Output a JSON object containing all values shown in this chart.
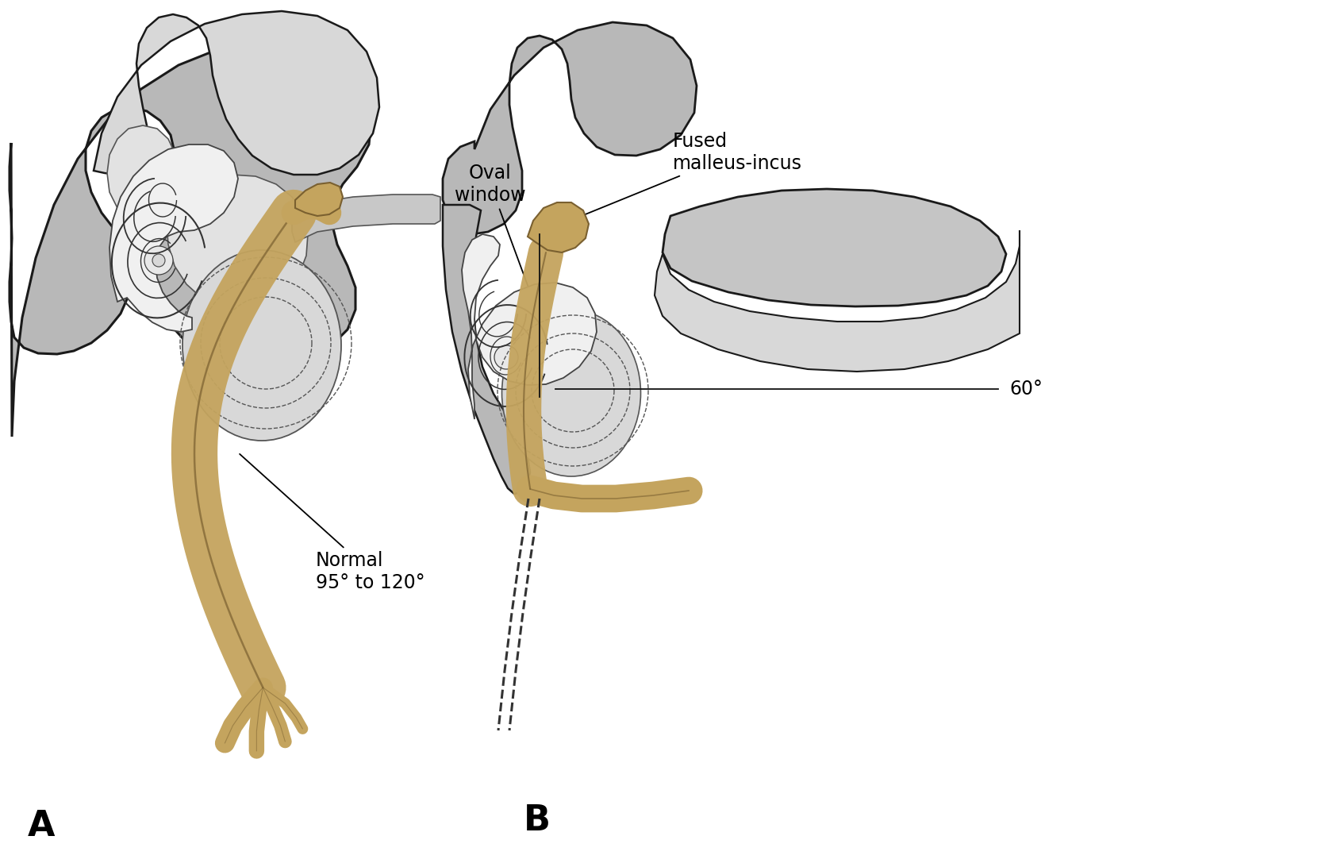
{
  "background_color": "#ffffff",
  "figure_width": 16.81,
  "figure_height": 10.87,
  "dpi": 100,
  "label_A": "A",
  "label_B": "B",
  "nerve_color": "#C4A45E",
  "nerve_edge_color": "#7A6030",
  "skull_light": "#d8d8d8",
  "skull_mid": "#b8b8b8",
  "skull_dark": "#909090",
  "outline": "#1a1a1a",
  "text_color": "#000000",
  "annotation_fontsize": 17,
  "label_fontsize": 32,
  "annotation_normal_text": "Normal\n95° to 120°",
  "annotation_oval_text": "Oval\nwindow",
  "annotation_fused_text": "Fused\nmalleus-incus",
  "annotation_60_text": "60°"
}
